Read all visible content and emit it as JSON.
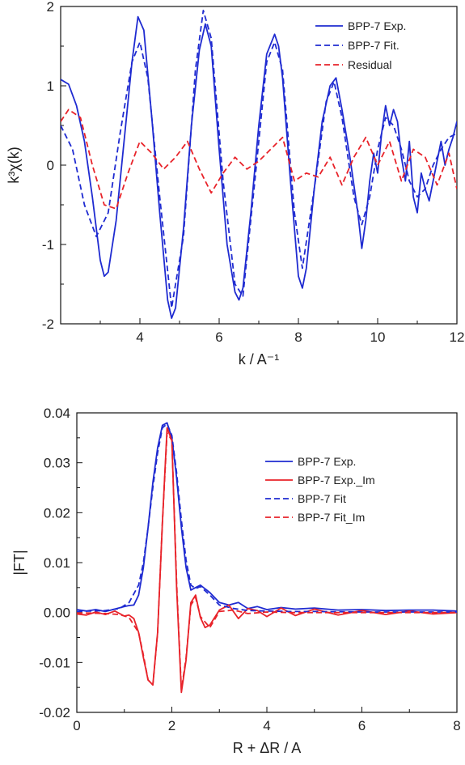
{
  "chart_data": [
    {
      "type": "line",
      "ylabel": "k³χ(k)",
      "xlabel": "k / A⁻¹",
      "xlim": [
        2,
        12
      ],
      "ylim": [
        -2,
        2
      ],
      "xticks": [
        4,
        6,
        8,
        10,
        12
      ],
      "yticks": [
        -2,
        -1,
        0,
        1,
        2
      ],
      "ytick_labels": [
        "-2",
        "-1",
        "0",
        "1",
        "2"
      ],
      "legend_position": "top-right",
      "grid": false,
      "series": [
        {
          "name": "BPP-7 Exp.",
          "color": "#1f2bd1",
          "style": "solid",
          "x": [
            2.0,
            2.2,
            2.4,
            2.6,
            2.8,
            3.0,
            3.1,
            3.2,
            3.4,
            3.6,
            3.8,
            3.95,
            4.1,
            4.3,
            4.5,
            4.7,
            4.8,
            4.9,
            5.1,
            5.3,
            5.5,
            5.65,
            5.8,
            6.0,
            6.2,
            6.4,
            6.5,
            6.6,
            6.8,
            7.0,
            7.2,
            7.4,
            7.5,
            7.6,
            7.8,
            8.0,
            8.1,
            8.2,
            8.4,
            8.6,
            8.8,
            8.95,
            9.1,
            9.3,
            9.5,
            9.6,
            9.7,
            9.8,
            9.9,
            10.0,
            10.1,
            10.2,
            10.3,
            10.4,
            10.5,
            10.6,
            10.7,
            10.8,
            10.9,
            11.0,
            11.1,
            11.2,
            11.3,
            11.4,
            11.5,
            11.6,
            11.7,
            11.8,
            11.9,
            12.0
          ],
          "y": [
            1.08,
            1.02,
            0.75,
            0.3,
            -0.4,
            -1.2,
            -1.4,
            -1.35,
            -0.7,
            0.3,
            1.3,
            1.87,
            1.7,
            0.6,
            -0.6,
            -1.7,
            -1.93,
            -1.8,
            -0.8,
            0.5,
            1.45,
            1.78,
            1.5,
            0.2,
            -1.0,
            -1.6,
            -1.7,
            -1.55,
            -0.6,
            0.5,
            1.4,
            1.65,
            1.5,
            1.1,
            -0.2,
            -1.4,
            -1.55,
            -1.3,
            -0.3,
            0.55,
            1.0,
            1.1,
            0.7,
            0.1,
            -0.6,
            -1.05,
            -0.7,
            -0.2,
            0.15,
            -0.1,
            0.4,
            0.75,
            0.5,
            0.7,
            0.55,
            0.1,
            -0.2,
            0.3,
            -0.4,
            -0.6,
            -0.1,
            -0.3,
            -0.45,
            -0.2,
            0.05,
            0.3,
            0.0,
            0.2,
            0.35,
            0.55
          ]
        },
        {
          "name": "BPP-7 Fit.",
          "color": "#1f2bd1",
          "style": "dashed",
          "x": [
            2.0,
            2.3,
            2.6,
            2.9,
            3.2,
            3.5,
            3.8,
            4.0,
            4.2,
            4.5,
            4.8,
            5.1,
            5.4,
            5.6,
            5.8,
            6.1,
            6.4,
            6.6,
            6.9,
            7.2,
            7.4,
            7.6,
            7.9,
            8.1,
            8.4,
            8.7,
            8.9,
            9.1,
            9.4,
            9.6,
            9.8,
            10.0,
            10.2,
            10.4,
            10.6,
            10.8,
            11.0,
            11.2,
            11.4,
            11.6,
            11.8,
            12.0
          ],
          "y": [
            0.5,
            0.2,
            -0.5,
            -0.9,
            -0.6,
            0.4,
            1.3,
            1.55,
            1.1,
            -0.4,
            -1.8,
            -0.9,
            1.2,
            1.95,
            1.6,
            -0.2,
            -1.5,
            -1.65,
            -0.2,
            1.3,
            1.55,
            1.2,
            -0.6,
            -1.3,
            -0.3,
            0.8,
            1.05,
            0.6,
            -0.4,
            -0.75,
            -0.4,
            0.2,
            0.6,
            0.5,
            0.2,
            -0.2,
            -0.4,
            -0.3,
            0.0,
            0.2,
            0.35,
            0.4
          ]
        },
        {
          "name": "Residual",
          "color": "#e8232a",
          "style": "dashed",
          "x": [
            2.0,
            2.2,
            2.5,
            2.8,
            3.1,
            3.4,
            3.7,
            4.0,
            4.3,
            4.6,
            4.9,
            5.2,
            5.5,
            5.8,
            6.1,
            6.4,
            6.7,
            7.0,
            7.3,
            7.6,
            7.9,
            8.2,
            8.5,
            8.8,
            9.1,
            9.4,
            9.7,
            10.0,
            10.3,
            10.6,
            10.9,
            11.2,
            11.5,
            11.8,
            12.0
          ],
          "y": [
            0.55,
            0.7,
            0.6,
            0.0,
            -0.5,
            -0.55,
            -0.1,
            0.3,
            0.15,
            -0.05,
            0.1,
            0.3,
            -0.05,
            -0.35,
            -0.1,
            0.1,
            -0.05,
            0.05,
            0.2,
            0.35,
            -0.2,
            -0.1,
            -0.15,
            0.1,
            -0.25,
            0.1,
            0.35,
            0.0,
            0.3,
            -0.2,
            0.2,
            0.1,
            -0.25,
            0.15,
            -0.3
          ]
        }
      ]
    },
    {
      "type": "line",
      "ylabel": "|FT|",
      "xlabel": "R + ΔR / A",
      "xlim": [
        0,
        8
      ],
      "ylim": [
        -0.02,
        0.04
      ],
      "xticks": [
        0,
        2,
        4,
        6,
        8
      ],
      "yticks": [
        -0.02,
        -0.01,
        0.0,
        0.01,
        0.02,
        0.03,
        0.04
      ],
      "ytick_labels": [
        "-0.02",
        "-0.01",
        "0.00",
        "0.01",
        "0.02",
        "0.03",
        "0.04"
      ],
      "legend_position": "center-right",
      "grid": false,
      "series": [
        {
          "name": "BPP-7 Exp.",
          "color": "#1f2bd1",
          "style": "solid",
          "x": [
            0.0,
            0.2,
            0.4,
            0.6,
            0.8,
            1.0,
            1.1,
            1.2,
            1.3,
            1.4,
            1.5,
            1.6,
            1.7,
            1.8,
            1.9,
            2.0,
            2.1,
            2.2,
            2.3,
            2.4,
            2.5,
            2.6,
            2.8,
            3.0,
            3.2,
            3.4,
            3.6,
            3.8,
            4.0,
            4.3,
            4.6,
            5.0,
            5.5,
            6.0,
            6.5,
            7.0,
            7.5,
            8.0
          ],
          "y": [
            0.0006,
            0.0003,
            0.0006,
            0.0002,
            0.0007,
            0.0012,
            0.0014,
            0.0015,
            0.0035,
            0.009,
            0.017,
            0.026,
            0.033,
            0.0375,
            0.038,
            0.035,
            0.027,
            0.017,
            0.009,
            0.0045,
            0.005,
            0.0055,
            0.004,
            0.002,
            0.0015,
            0.002,
            0.0008,
            0.0012,
            0.0006,
            0.001,
            0.0007,
            0.0009,
            0.0005,
            0.0006,
            0.0004,
            0.0005,
            0.0005,
            0.0003
          ]
        },
        {
          "name": "BPP-7 Exp._Im",
          "color": "#e8232a",
          "style": "solid",
          "x": [
            0.0,
            0.2,
            0.4,
            0.6,
            0.8,
            1.0,
            1.1,
            1.2,
            1.3,
            1.4,
            1.5,
            1.6,
            1.7,
            1.8,
            1.9,
            2.0,
            2.1,
            2.2,
            2.3,
            2.4,
            2.5,
            2.6,
            2.7,
            2.8,
            3.0,
            3.2,
            3.4,
            3.6,
            3.8,
            4.0,
            4.3,
            4.6,
            5.0,
            5.5,
            6.0,
            6.5,
            7.0,
            7.5,
            8.0
          ],
          "y": [
            -0.0003,
            -0.0005,
            0.0001,
            -0.0004,
            0.0003,
            -0.0007,
            -0.0005,
            -0.0012,
            -0.004,
            -0.009,
            -0.0135,
            -0.0145,
            -0.004,
            0.018,
            0.037,
            0.0345,
            0.005,
            -0.016,
            -0.0095,
            0.002,
            0.0035,
            -0.001,
            -0.003,
            -0.0025,
            0.0005,
            0.0015,
            -0.0012,
            0.0008,
            0.0004,
            -0.0008,
            0.0009,
            -0.0006,
            0.0007,
            -0.0005,
            0.0004,
            -0.0004,
            0.0003,
            -0.0003,
            0.0
          ]
        },
        {
          "name": "BPP-7 Fit",
          "color": "#1f2bd1",
          "style": "dashed",
          "x": [
            0.0,
            0.3,
            0.6,
            0.9,
            1.1,
            1.3,
            1.4,
            1.5,
            1.6,
            1.7,
            1.8,
            1.9,
            2.0,
            2.1,
            2.2,
            2.3,
            2.4,
            2.5,
            2.6,
            2.8,
            3.0,
            3.3,
            3.6,
            4.0,
            4.5,
            5.0,
            6.0,
            7.0,
            8.0
          ],
          "y": [
            0.0002,
            0.0003,
            0.0004,
            0.0008,
            0.002,
            0.0055,
            0.01,
            0.017,
            0.025,
            0.032,
            0.037,
            0.0378,
            0.0355,
            0.028,
            0.0185,
            0.0105,
            0.0055,
            0.0048,
            0.0052,
            0.0035,
            0.0015,
            0.0008,
            0.0004,
            0.0003,
            0.0002,
            0.0002,
            0.0001,
            0.0001,
            0.0001
          ]
        },
        {
          "name": "BPP-7 Fit_Im",
          "color": "#e8232a",
          "style": "dashed",
          "x": [
            0.0,
            0.3,
            0.6,
            0.9,
            1.1,
            1.3,
            1.4,
            1.5,
            1.6,
            1.7,
            1.8,
            1.9,
            2.0,
            2.1,
            2.2,
            2.3,
            2.4,
            2.5,
            2.6,
            2.8,
            3.0,
            3.3,
            3.6,
            4.0,
            4.5,
            5.0,
            6.0,
            7.0,
            8.0
          ],
          "y": [
            -0.0001,
            -0.0001,
            -0.0002,
            -0.0004,
            -0.001,
            -0.004,
            -0.0085,
            -0.0135,
            -0.0145,
            -0.004,
            0.018,
            0.036,
            0.0345,
            0.006,
            -0.0155,
            -0.009,
            0.0015,
            0.003,
            -0.0008,
            -0.003,
            0.0002,
            0.0005,
            -0.0002,
            0.0001,
            0.0,
            0.0,
            0.0,
            0.0,
            0.0
          ]
        }
      ]
    }
  ]
}
